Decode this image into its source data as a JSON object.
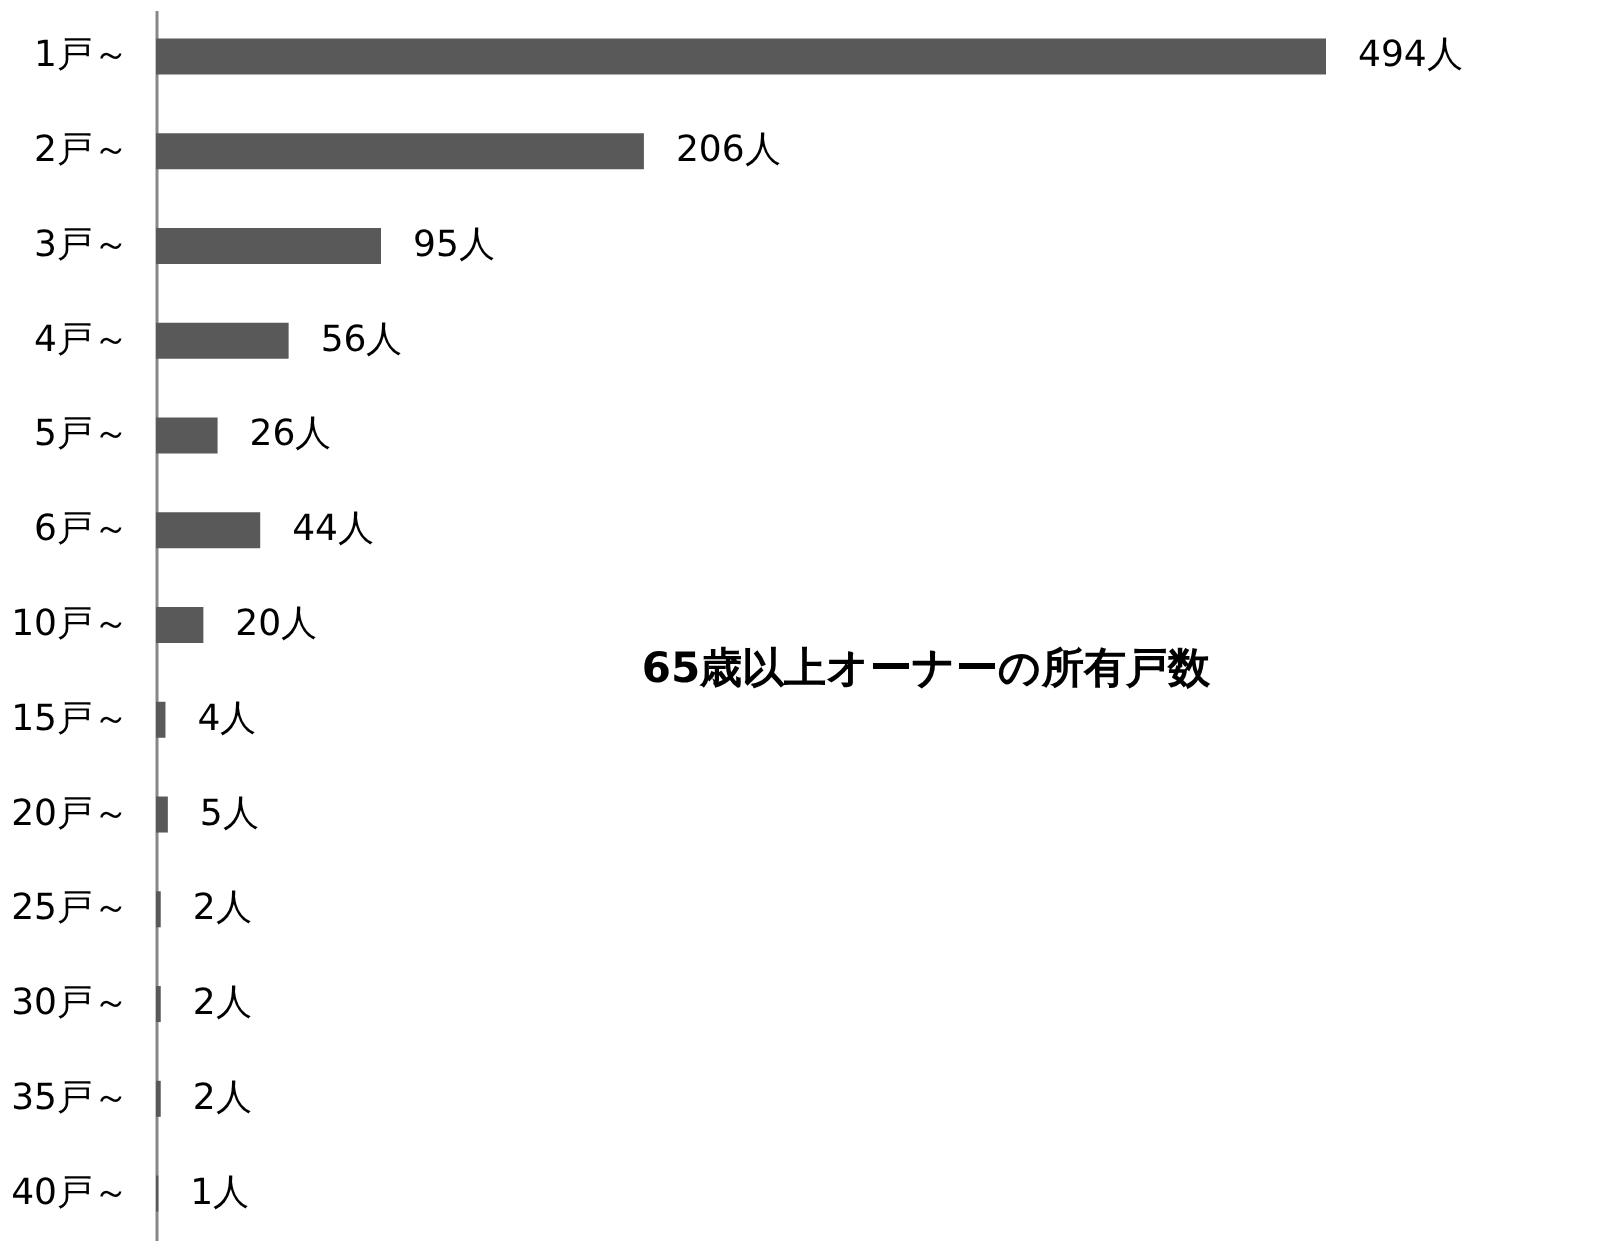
{
  "chart_data": {
    "type": "bar",
    "orientation": "horizontal",
    "title": "65歳以上オーナーの所有戸数",
    "categories": [
      "1戸～",
      "2戸～",
      "3戸～",
      "4戸～",
      "5戸～",
      "6戸～",
      "10戸～",
      "15戸～",
      "20戸～",
      "25戸～",
      "30戸～",
      "35戸～",
      "40戸～"
    ],
    "values": [
      494,
      206,
      95,
      56,
      26,
      44,
      20,
      4,
      5,
      2,
      2,
      2,
      1
    ],
    "value_labels": [
      "494人",
      "206人",
      "95人",
      "56人",
      "26人",
      "44人",
      "20人",
      "4人",
      "5人",
      "2人",
      "2人",
      "2人",
      "1人"
    ],
    "color": "#595959",
    "grid": false
  }
}
